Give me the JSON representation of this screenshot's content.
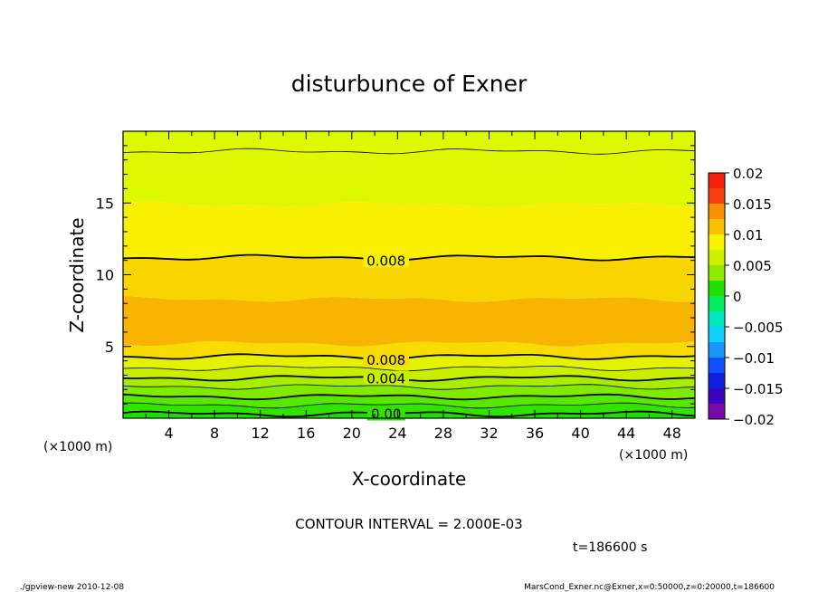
{
  "chart_data": {
    "type": "heatmap",
    "title": "disturbunce of Exner",
    "xlabel": "X-coordinate",
    "ylabel": "Z-coordinate",
    "x_unit": "(×1000 m)",
    "y_unit": "(×1000 m)",
    "xlim": [
      0,
      50
    ],
    "ylim": [
      0,
      20
    ],
    "x_ticks": [
      4,
      8,
      12,
      16,
      20,
      24,
      28,
      32,
      36,
      40,
      44,
      48
    ],
    "y_ticks": [
      5,
      10,
      15
    ],
    "contour_interval_text": "CONTOUR INTERVAL = 2.000E-03",
    "time_text": "t=186600 s",
    "footer_left": "./gpview-new   2010-12-08",
    "footer_right": "MarsCond_Exner.nc@Exner,x=0:50000,z=0:20000,t=186600",
    "colorbar": {
      "levels": [
        -0.02,
        -0.0175,
        -0.015,
        -0.0125,
        -0.01,
        -0.0075,
        -0.005,
        -0.0025,
        0,
        0.0025,
        0.005,
        0.0075,
        0.01,
        0.0125,
        0.015,
        0.0175,
        0.02
      ],
      "colors": [
        "#7a0aa8",
        "#3b00c0",
        "#1020e0",
        "#1050ff",
        "#1894ff",
        "#10d0ff",
        "#00e8c0",
        "#00ee60",
        "#20e000",
        "#90ea00",
        "#d0f000",
        "#f8f400",
        "#f8c000",
        "#f89000",
        "#f84010",
        "#f8200a",
        "#f88080"
      ],
      "tick_labels": [
        "0.02",
        "0.015",
        "0.01",
        "0.005",
        "0",
        "−0.005",
        "−0.01",
        "−0.015",
        "−0.02"
      ],
      "tick_values": [
        0.02,
        0.015,
        0.01,
        0.005,
        0,
        -0.005,
        -0.01,
        -0.015,
        -0.02
      ]
    },
    "bands": [
      {
        "z0": 0.0,
        "z1": 0.3,
        "value": 0.0,
        "color": "#18e000"
      },
      {
        "z0": 0.3,
        "z1": 0.9,
        "value": 0.001,
        "color": "#30e400"
      },
      {
        "z0": 0.9,
        "z1": 1.5,
        "value": 0.002,
        "color": "#58e800"
      },
      {
        "z0": 1.5,
        "z1": 2.2,
        "value": 0.003,
        "color": "#80ea00"
      },
      {
        "z0": 2.2,
        "z1": 2.8,
        "value": 0.004,
        "color": "#a8ec00"
      },
      {
        "z0": 2.8,
        "z1": 3.5,
        "value": 0.005,
        "color": "#c8ee00"
      },
      {
        "z0": 3.5,
        "z1": 4.3,
        "value": 0.007,
        "color": "#e4f200"
      },
      {
        "z0": 4.3,
        "z1": 5.2,
        "value": 0.0085,
        "color": "#f8dc00"
      },
      {
        "z0": 5.2,
        "z1": 8.3,
        "value": 0.0095,
        "color": "#f8b400"
      },
      {
        "z0": 8.3,
        "z1": 11.2,
        "value": 0.0085,
        "color": "#f8d400"
      },
      {
        "z0": 11.2,
        "z1": 14.9,
        "value": 0.007,
        "color": "#f8f000"
      },
      {
        "z0": 14.9,
        "z1": 20.0,
        "value": 0.005,
        "color": "#ddf800"
      }
    ],
    "contour_lines": [
      {
        "z": 0.3,
        "value": 0.0,
        "bold": true,
        "label": "0.00"
      },
      {
        "z": 0.9,
        "value": 0.001,
        "bold": false,
        "label": ""
      },
      {
        "z": 1.5,
        "value": 0.002,
        "bold": true,
        "label": ""
      },
      {
        "z": 2.2,
        "value": 0.003,
        "bold": false,
        "label": ""
      },
      {
        "z": 2.8,
        "value": 0.004,
        "bold": true,
        "label": "0.004"
      },
      {
        "z": 3.5,
        "value": 0.005,
        "bold": false,
        "label": ""
      },
      {
        "z": 4.3,
        "value": 0.008,
        "bold": true,
        "label": "0.008"
      },
      {
        "z": 11.2,
        "value": 0.008,
        "bold": true,
        "label": "0.008"
      },
      {
        "z": 18.6,
        "value": 0.004,
        "bold": false,
        "label": ""
      }
    ]
  }
}
